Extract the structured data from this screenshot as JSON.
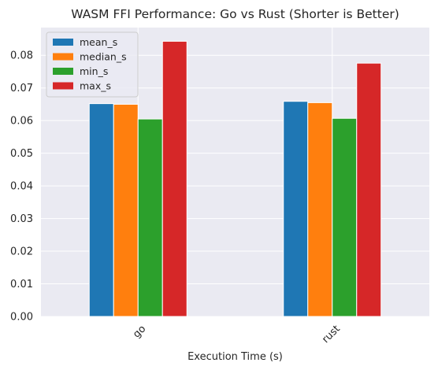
{
  "chart_data": {
    "type": "bar",
    "title": "WASM FFI Performance: Go vs Rust (Shorter is Better)",
    "xlabel": "Execution Time (s)",
    "ylabel": "",
    "categories": [
      "go",
      "rust"
    ],
    "series": [
      {
        "name": "mean_s",
        "color": "#1f77b4",
        "values": [
          0.0652,
          0.0659
        ]
      },
      {
        "name": "median_s",
        "color": "#ff7f0e",
        "values": [
          0.065,
          0.0655
        ]
      },
      {
        "name": "min_s",
        "color": "#2ca02c",
        "values": [
          0.0605,
          0.0607
        ]
      },
      {
        "name": "max_s",
        "color": "#d62728",
        "values": [
          0.0843,
          0.0776
        ]
      }
    ],
    "ylim": [
      0,
      0.0885
    ],
    "yticks": [
      "0.00",
      "0.01",
      "0.02",
      "0.03",
      "0.04",
      "0.05",
      "0.06",
      "0.07",
      "0.08"
    ],
    "ytick_values": [
      0,
      0.01,
      0.02,
      0.03,
      0.04,
      0.05,
      0.06,
      0.07,
      0.08
    ],
    "grid": true,
    "background_color": "#eaeaf2",
    "legend_position": "top-left"
  }
}
